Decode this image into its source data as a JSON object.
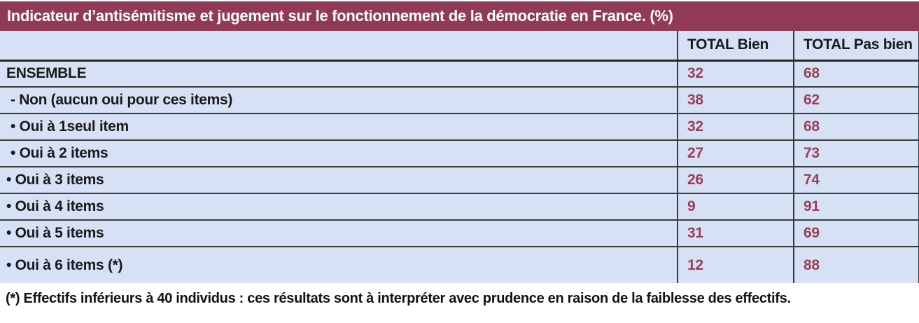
{
  "title": "Indicateur d’antisémitisme et jugement sur le fonctionnement de la démocratie en France. (%)",
  "table": {
    "columns": {
      "label": "",
      "bien": "TOTAL Bien",
      "pas_bien": "TOTAL Pas bien"
    },
    "rows": [
      {
        "label": "ENSEMBLE",
        "bien": "32",
        "pas_bien": "68"
      },
      {
        "label": "- Non (aucun oui pour ces items)",
        "bien": "38",
        "pas_bien": "62"
      },
      {
        "label": "• Oui à 1seul item",
        "bien": "32",
        "pas_bien": "68"
      },
      {
        "label": "• Oui à 2 items",
        "bien": "27",
        "pas_bien": "73"
      },
      {
        "label": "• Oui à 3 items",
        "bien": "26",
        "pas_bien": "74"
      },
      {
        "label": "• Oui à 4 items",
        "bien": "9",
        "pas_bien": "91"
      },
      {
        "label": "• Oui à 5 items",
        "bien": "31",
        "pas_bien": "69"
      },
      {
        "label": "• Oui à 6 items (*)",
        "bien": "12",
        "pas_bien": "88"
      }
    ]
  },
  "footnote": "(*) Effectifs inférieurs à 40 individus : ces résultats sont à interpréter avec prudence en raison de la faiblesse des effectifs.",
  "colors": {
    "title_bar_bg": "#913a55",
    "title_text": "#ffffff",
    "row_bg": "#d6e1f5",
    "value_text": "#9a3f58",
    "border": "#3a3a3a"
  }
}
